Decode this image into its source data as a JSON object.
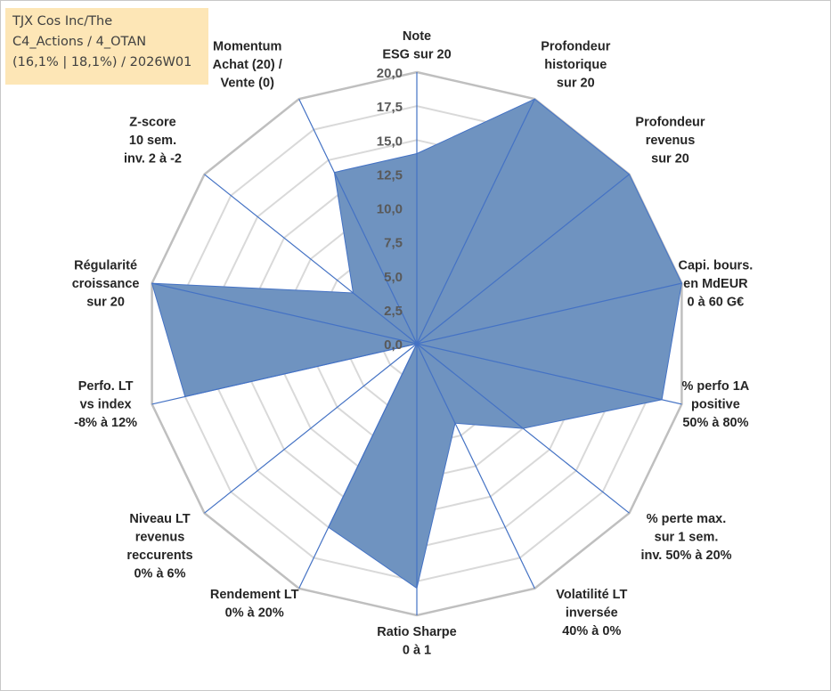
{
  "title_box": {
    "lines": [
      "TJX Cos Inc/The",
      "C4_Actions / 4_OTAN",
      "(16,1% | 18,1%) / 2026W01"
    ]
  },
  "colors": {
    "fill": "#6f93c0",
    "stroke": "#4472c4",
    "grid_outer": "#bfbfbf",
    "grid_inner": "#d9d9d9",
    "title_bg": "#fde6b6"
  },
  "chart_data": {
    "type": "radar",
    "title": "",
    "rmin": 0,
    "rmax": 20,
    "tick_step": 2.5,
    "ticks": [
      "0,0",
      "2,5",
      "5,0",
      "7,5",
      "10,0",
      "12,5",
      "15,0",
      "17,5",
      "20,0"
    ],
    "grid": true,
    "legend": "none",
    "axes": [
      {
        "label": [
          "Note",
          "ESG sur 20"
        ],
        "value": 14.0
      },
      {
        "label": [
          "Profondeur",
          "historique",
          "sur 20"
        ],
        "value": 20.0
      },
      {
        "label": [
          "Profondeur",
          "revenus",
          "sur 20"
        ],
        "value": 20.0
      },
      {
        "label": [
          "Capi. bours.",
          "en MdEUR",
          "0 à 60 G€"
        ],
        "value": 20.0
      },
      {
        "label": [
          "% perfo 1A",
          "positive",
          "50% à 80%"
        ],
        "value": 18.5
      },
      {
        "label": [
          "% perte max.",
          "sur 1 sem.",
          "inv. 50% à 20%"
        ],
        "value": 10.0
      },
      {
        "label": [
          "Volatilité LT",
          "inversée",
          "40% à 0%"
        ],
        "value": 6.5
      },
      {
        "label": [
          "Ratio Sharpe",
          "0 à 1"
        ],
        "value": 18.0
      },
      {
        "label": [
          "Rendement LT",
          "0% à 20%"
        ],
        "value": 15.0
      },
      {
        "label": [
          "Niveau LT",
          "revenus",
          "reccurents",
          "0% à 6%"
        ],
        "value": 0.0
      },
      {
        "label": [
          "Perfo. LT",
          "vs index",
          "-8% à 12%"
        ],
        "value": 17.5
      },
      {
        "label": [
          "Régularité",
          "croissance",
          "sur 20"
        ],
        "value": 20.0
      },
      {
        "label": [
          "Z-score",
          "10 sem.",
          "inv. 2 à -2"
        ],
        "value": 6.0
      },
      {
        "label": [
          "Momentum",
          "Achat (20) /",
          "Vente (0)"
        ],
        "value": 14.0
      }
    ]
  }
}
